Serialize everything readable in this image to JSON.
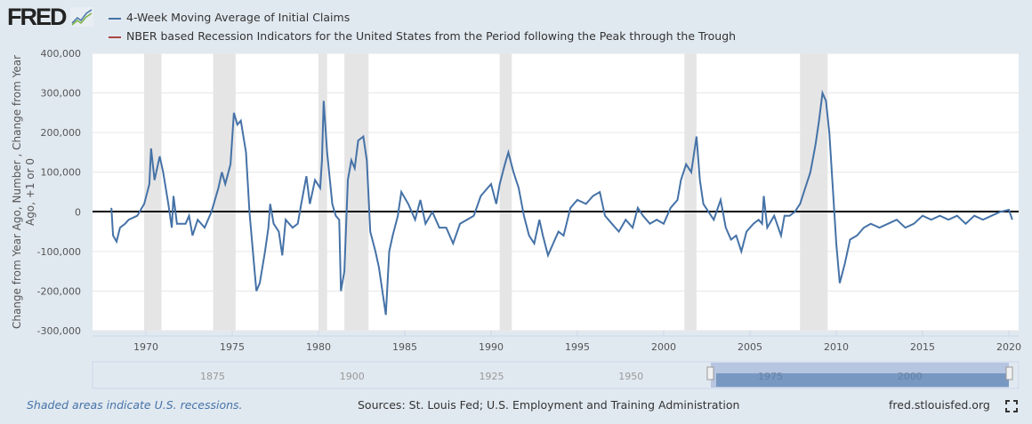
{
  "header": {
    "logo": "FRED",
    "logo_icon": "chart-line-icon"
  },
  "legend": [
    {
      "label": "4-Week Moving Average of Initial Claims",
      "color": "#4572a7"
    },
    {
      "label": "NBER based Recession Indicators for the United States from the Period following the Peak through the Trough",
      "color": "#aa4643"
    }
  ],
  "footer": {
    "note": "Shaded areas indicate U.S. recessions.",
    "sources": "Sources: St. Louis Fed; U.S. Employment and Training Administration",
    "site": "fred.stlouisfed.org",
    "fullscreen_icon": "fullscreen-icon"
  },
  "chart_data": {
    "type": "line",
    "ylabel": "Change from Year Ago, Number , Change from Year Ago, +1 or 0",
    "ylim": [
      -300000,
      400000
    ],
    "yticks": [
      "400,000",
      "300,000",
      "200,000",
      "100,000",
      "0",
      "-100,000",
      "-200,000",
      "-300,000"
    ],
    "xlim": [
      1967,
      2020.6
    ],
    "xticks": [
      "1970",
      "1975",
      "1980",
      "1985",
      "1990",
      "1995",
      "2000",
      "2005",
      "2010",
      "2015",
      "2020"
    ],
    "navigator_ticks": [
      "1875",
      "1900",
      "1925",
      "1950",
      "1975",
      "2000"
    ],
    "recessions": [
      [
        1969.9,
        1970.9
      ],
      [
        1973.9,
        1975.2
      ],
      [
        1980.0,
        1980.5
      ],
      [
        1981.5,
        1982.9
      ],
      [
        1990.5,
        1991.2
      ],
      [
        2001.2,
        2001.9
      ],
      [
        2007.9,
        2009.5
      ]
    ],
    "series": [
      {
        "color": "#4572a7",
        "points": [
          [
            1968.0,
            10000
          ],
          [
            1968.1,
            -60000
          ],
          [
            1968.3,
            -75000
          ],
          [
            1968.5,
            -40000
          ],
          [
            1968.8,
            -30000
          ],
          [
            1969.0,
            -20000
          ],
          [
            1969.5,
            -10000
          ],
          [
            1969.9,
            20000
          ],
          [
            1970.2,
            70000
          ],
          [
            1970.3,
            160000
          ],
          [
            1970.5,
            80000
          ],
          [
            1970.8,
            140000
          ],
          [
            1971.0,
            100000
          ],
          [
            1971.3,
            20000
          ],
          [
            1971.5,
            -40000
          ],
          [
            1971.6,
            40000
          ],
          [
            1971.8,
            -30000
          ],
          [
            1972.3,
            -30000
          ],
          [
            1972.5,
            -10000
          ],
          [
            1972.7,
            -60000
          ],
          [
            1973.0,
            -20000
          ],
          [
            1973.4,
            -40000
          ],
          [
            1973.8,
            0
          ],
          [
            1974.2,
            60000
          ],
          [
            1974.4,
            100000
          ],
          [
            1974.6,
            70000
          ],
          [
            1974.9,
            120000
          ],
          [
            1975.1,
            250000
          ],
          [
            1975.3,
            220000
          ],
          [
            1975.5,
            230000
          ],
          [
            1975.8,
            150000
          ],
          [
            1976.0,
            0
          ],
          [
            1976.3,
            -150000
          ],
          [
            1976.4,
            -200000
          ],
          [
            1976.6,
            -180000
          ],
          [
            1976.9,
            -100000
          ],
          [
            1977.1,
            -40000
          ],
          [
            1977.2,
            20000
          ],
          [
            1977.4,
            -30000
          ],
          [
            1977.7,
            -50000
          ],
          [
            1977.9,
            -110000
          ],
          [
            1978.1,
            -20000
          ],
          [
            1978.5,
            -40000
          ],
          [
            1978.8,
            -30000
          ],
          [
            1979.0,
            20000
          ],
          [
            1979.3,
            90000
          ],
          [
            1979.5,
            20000
          ],
          [
            1979.8,
            80000
          ],
          [
            1980.1,
            60000
          ],
          [
            1980.2,
            130000
          ],
          [
            1980.3,
            280000
          ],
          [
            1980.5,
            150000
          ],
          [
            1980.8,
            20000
          ],
          [
            1981.0,
            -10000
          ],
          [
            1981.2,
            -20000
          ],
          [
            1981.3,
            -200000
          ],
          [
            1981.5,
            -150000
          ],
          [
            1981.7,
            80000
          ],
          [
            1981.9,
            130000
          ],
          [
            1982.1,
            110000
          ],
          [
            1982.3,
            180000
          ],
          [
            1982.6,
            190000
          ],
          [
            1982.8,
            130000
          ],
          [
            1983.0,
            -50000
          ],
          [
            1983.3,
            -100000
          ],
          [
            1983.5,
            -140000
          ],
          [
            1983.7,
            -200000
          ],
          [
            1983.9,
            -260000
          ],
          [
            1984.1,
            -100000
          ],
          [
            1984.3,
            -60000
          ],
          [
            1984.6,
            -10000
          ],
          [
            1984.8,
            50000
          ],
          [
            1985.2,
            20000
          ],
          [
            1985.6,
            -20000
          ],
          [
            1985.9,
            30000
          ],
          [
            1986.2,
            -30000
          ],
          [
            1986.6,
            0
          ],
          [
            1987.0,
            -40000
          ],
          [
            1987.4,
            -40000
          ],
          [
            1987.8,
            -80000
          ],
          [
            1988.2,
            -30000
          ],
          [
            1988.6,
            -20000
          ],
          [
            1989.0,
            -10000
          ],
          [
            1989.4,
            40000
          ],
          [
            1989.8,
            60000
          ],
          [
            1990.0,
            70000
          ],
          [
            1990.3,
            20000
          ],
          [
            1990.5,
            70000
          ],
          [
            1990.8,
            120000
          ],
          [
            1991.0,
            150000
          ],
          [
            1991.3,
            100000
          ],
          [
            1991.6,
            60000
          ],
          [
            1991.9,
            -10000
          ],
          [
            1992.2,
            -60000
          ],
          [
            1992.5,
            -80000
          ],
          [
            1992.8,
            -20000
          ],
          [
            1993.0,
            -60000
          ],
          [
            1993.3,
            -110000
          ],
          [
            1993.6,
            -80000
          ],
          [
            1993.9,
            -50000
          ],
          [
            1994.2,
            -60000
          ],
          [
            1994.6,
            10000
          ],
          [
            1995.0,
            30000
          ],
          [
            1995.5,
            20000
          ],
          [
            1995.9,
            40000
          ],
          [
            1996.3,
            50000
          ],
          [
            1996.6,
            -10000
          ],
          [
            1997.0,
            -30000
          ],
          [
            1997.4,
            -50000
          ],
          [
            1997.8,
            -20000
          ],
          [
            1998.2,
            -40000
          ],
          [
            1998.5,
            10000
          ],
          [
            1998.8,
            -10000
          ],
          [
            1999.2,
            -30000
          ],
          [
            1999.6,
            -20000
          ],
          [
            2000.0,
            -30000
          ],
          [
            2000.4,
            10000
          ],
          [
            2000.8,
            30000
          ],
          [
            2001.0,
            80000
          ],
          [
            2001.3,
            120000
          ],
          [
            2001.6,
            100000
          ],
          [
            2001.9,
            190000
          ],
          [
            2002.1,
            80000
          ],
          [
            2002.3,
            20000
          ],
          [
            2002.6,
            0
          ],
          [
            2002.9,
            -20000
          ],
          [
            2003.3,
            30000
          ],
          [
            2003.6,
            -40000
          ],
          [
            2003.9,
            -70000
          ],
          [
            2004.2,
            -60000
          ],
          [
            2004.5,
            -100000
          ],
          [
            2004.8,
            -50000
          ],
          [
            2005.2,
            -30000
          ],
          [
            2005.5,
            -20000
          ],
          [
            2005.7,
            -30000
          ],
          [
            2005.8,
            40000
          ],
          [
            2006.0,
            -40000
          ],
          [
            2006.4,
            -10000
          ],
          [
            2006.8,
            -60000
          ],
          [
            2007.0,
            -10000
          ],
          [
            2007.3,
            -10000
          ],
          [
            2007.6,
            0
          ],
          [
            2007.9,
            20000
          ],
          [
            2008.2,
            60000
          ],
          [
            2008.5,
            100000
          ],
          [
            2008.8,
            170000
          ],
          [
            2009.0,
            230000
          ],
          [
            2009.2,
            300000
          ],
          [
            2009.4,
            280000
          ],
          [
            2009.6,
            200000
          ],
          [
            2009.8,
            60000
          ],
          [
            2010.0,
            -80000
          ],
          [
            2010.2,
            -180000
          ],
          [
            2010.5,
            -130000
          ],
          [
            2010.8,
            -70000
          ],
          [
            2011.2,
            -60000
          ],
          [
            2011.6,
            -40000
          ],
          [
            2012.0,
            -30000
          ],
          [
            2012.5,
            -40000
          ],
          [
            2013.0,
            -30000
          ],
          [
            2013.5,
            -20000
          ],
          [
            2014.0,
            -40000
          ],
          [
            2014.5,
            -30000
          ],
          [
            2015.0,
            -10000
          ],
          [
            2015.5,
            -20000
          ],
          [
            2016.0,
            -10000
          ],
          [
            2016.5,
            -20000
          ],
          [
            2017.0,
            -10000
          ],
          [
            2017.5,
            -30000
          ],
          [
            2018.0,
            -10000
          ],
          [
            2018.5,
            -20000
          ],
          [
            2019.0,
            -10000
          ],
          [
            2019.5,
            0
          ],
          [
            2020.0,
            5000
          ],
          [
            2020.2,
            -20000
          ]
        ]
      }
    ]
  }
}
